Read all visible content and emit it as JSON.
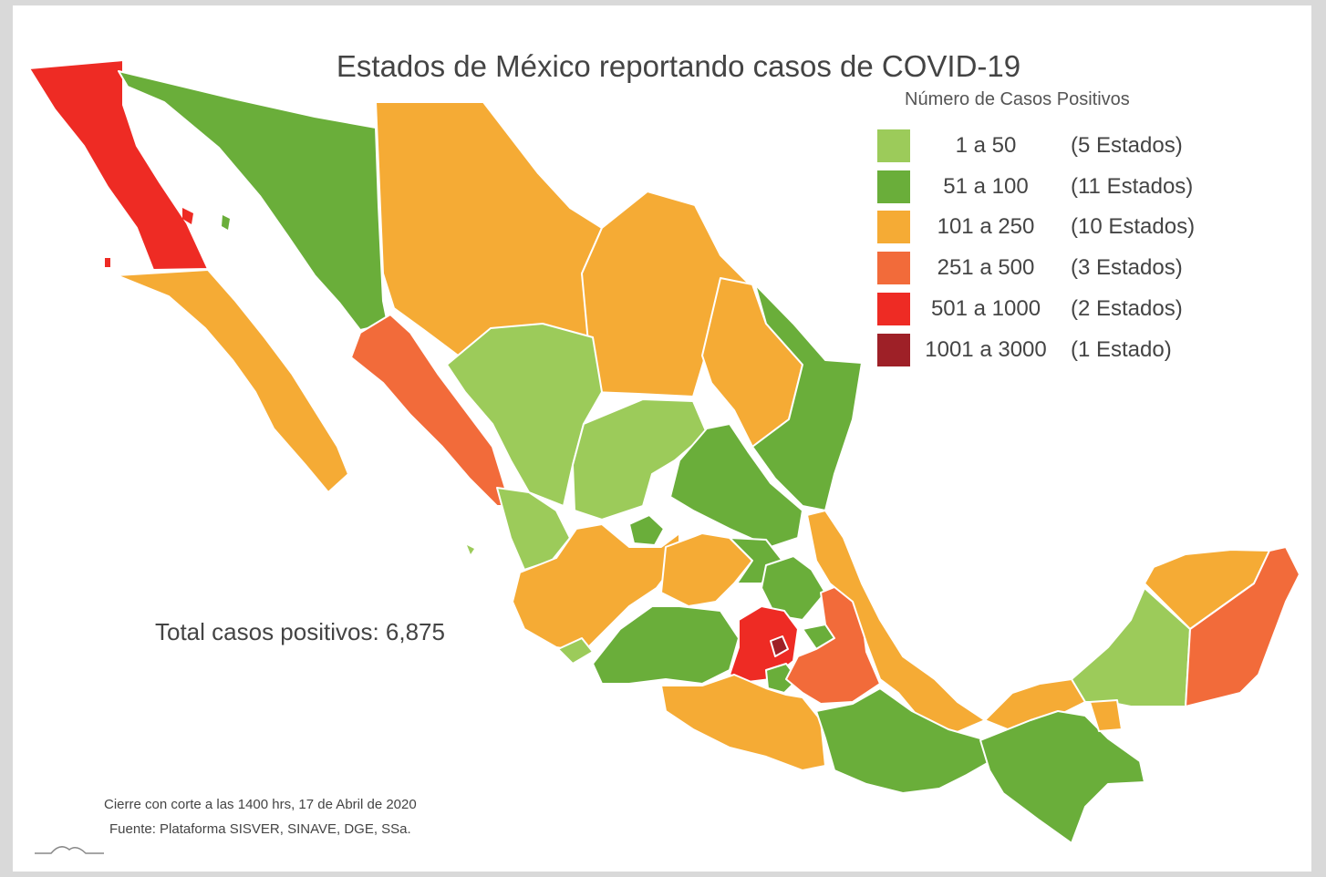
{
  "title": "Estados de México reportando casos de COVID-19",
  "legend": {
    "title": "Número de Casos Positivos",
    "items": [
      {
        "range": "1 a 50",
        "count": "(5 Estados)",
        "color": "#9ccb5a"
      },
      {
        "range": "51 a 100",
        "count": "(11 Estados)",
        "color": "#6aae3a"
      },
      {
        "range": "101 a 250",
        "count": "(10 Estados)",
        "color": "#f5ab35"
      },
      {
        "range": "251 a 500",
        "count": "(3 Estados)",
        "color": "#f26b3a"
      },
      {
        "range": "501 a 1000",
        "count": "(2 Estados)",
        "color": "#ee2b24"
      },
      {
        "range": "1001 a 3000",
        "count": "(1 Estado)",
        "color": "#9e2027"
      }
    ]
  },
  "total": "Total casos positivos: 6,875",
  "footnote": {
    "cutoff": "Cierre con corte a las 1400 hrs, 17 de Abril de 2020",
    "source": "Fuente: Plataforma SISVER, SINAVE, DGE, SSa."
  },
  "colors": {
    "very_light_green": "#9ccb5a",
    "green": "#6aae3a",
    "orange": "#f5ab35",
    "dark_orange": "#f26b3a",
    "red": "#ee2b24",
    "dark_red": "#9e2027"
  }
}
